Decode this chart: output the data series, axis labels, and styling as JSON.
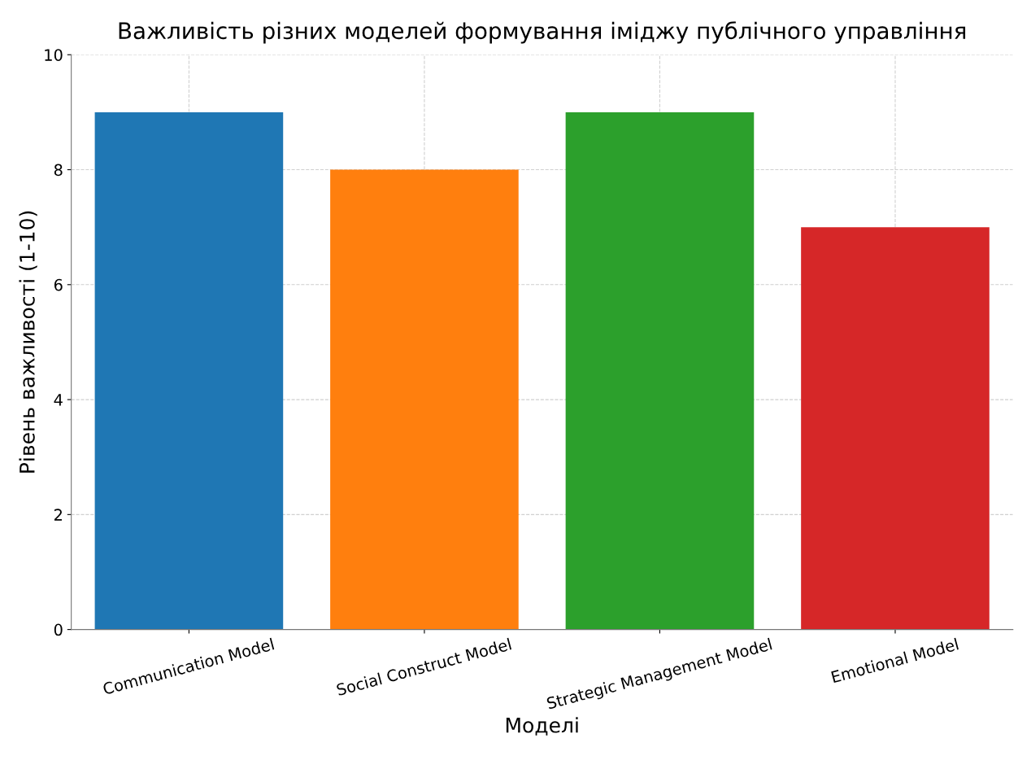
{
  "chart_data": {
    "type": "bar",
    "title": "Важливість різних моделей формування іміджу публічного управління",
    "xlabel": "Моделі",
    "ylabel": "Рівень важливості (1-10)",
    "categories": [
      "Communication Model",
      "Social Construct Model",
      "Strategic Management Model",
      "Emotional Model"
    ],
    "values": [
      9,
      8,
      9,
      7
    ],
    "colors": [
      "#1f77b4",
      "#ff7f0e",
      "#2ca02c",
      "#d62728"
    ],
    "ylim": [
      0,
      10
    ],
    "yticks": [
      0,
      2,
      4,
      6,
      8,
      10
    ],
    "grid": true
  }
}
